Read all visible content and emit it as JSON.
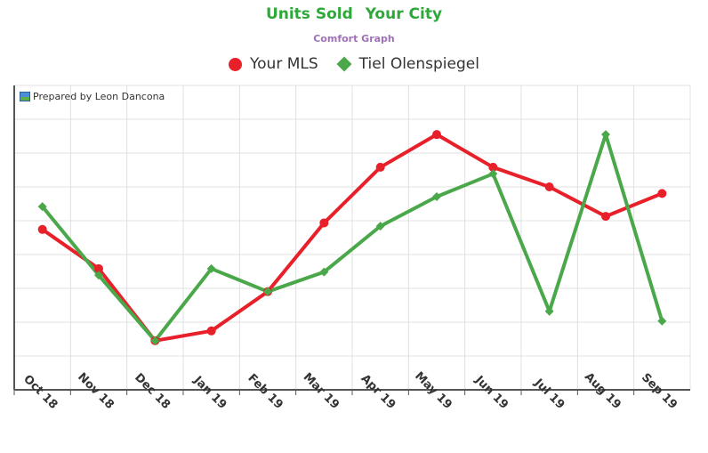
{
  "header": {
    "title_part1": "Units Sold",
    "title_part2": "Your City",
    "subtitle": "Comfort Graph"
  },
  "credit": {
    "text": "Prepared by Leon Dancona",
    "icon": "image-icon"
  },
  "colors": {
    "title": "#2fa83a",
    "subtitle": "#a070b8",
    "series_1": "#e8202a",
    "series_2": "#4aa84a",
    "grid": "#e0e0e0",
    "axis": "#555555"
  },
  "chart_data": {
    "type": "line",
    "categories": [
      "Oct 18",
      "Nov 18",
      "Dec 18",
      "Jan 19",
      "Feb 19",
      "Mar 19",
      "Apr 19",
      "May 19",
      "Jun 19",
      "Jul 19",
      "Aug 19",
      "Sep 19"
    ],
    "series": [
      {
        "name": "Your MLS",
        "marker": "circle",
        "values": [
          49,
          37,
          15,
          18,
          30,
          51,
          68,
          78,
          68,
          62,
          53,
          60
        ]
      },
      {
        "name": "Tiel Olenspiegel",
        "marker": "diamond",
        "values": [
          56,
          35,
          15,
          37,
          30,
          36,
          50,
          59,
          66,
          24,
          78,
          21
        ]
      }
    ],
    "ylim": [
      0,
      93
    ],
    "y_tick_labels_shown": false,
    "grid": true,
    "legend_position": "top-center"
  }
}
